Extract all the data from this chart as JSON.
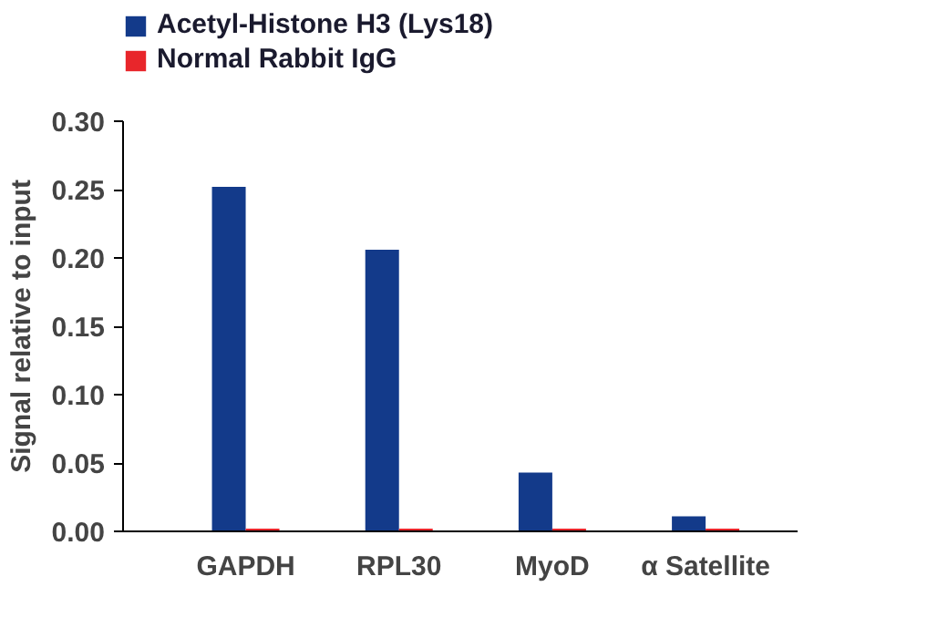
{
  "chart_data": {
    "type": "bar",
    "ylabel": "Signal relative to input",
    "categories": [
      "GAPDH",
      "RPL30",
      "MyoD",
      "α Satellite"
    ],
    "series": [
      {
        "name": "Acetyl-Histone H3 (Lys18)",
        "color": "#133a8a",
        "values": [
          0.252,
          0.206,
          0.043,
          0.011
        ]
      },
      {
        "name": "Normal Rabbit IgG",
        "color": "#e8262b",
        "values": [
          0.002,
          0.002,
          0.002,
          0.002
        ]
      }
    ],
    "ylim": [
      0,
      0.3
    ],
    "yticks": [
      {
        "value": 0,
        "label": "0.00"
      },
      {
        "value": 0.05,
        "label": "0.05"
      },
      {
        "value": 0.1,
        "label": "0.10"
      },
      {
        "value": 0.15,
        "label": "0.15"
      },
      {
        "value": 0.2,
        "label": "0.20"
      },
      {
        "value": 0.25,
        "label": "0.25"
      },
      {
        "value": 0.3,
        "label": "0.30"
      }
    ],
    "grid": false,
    "legend": "top left"
  }
}
